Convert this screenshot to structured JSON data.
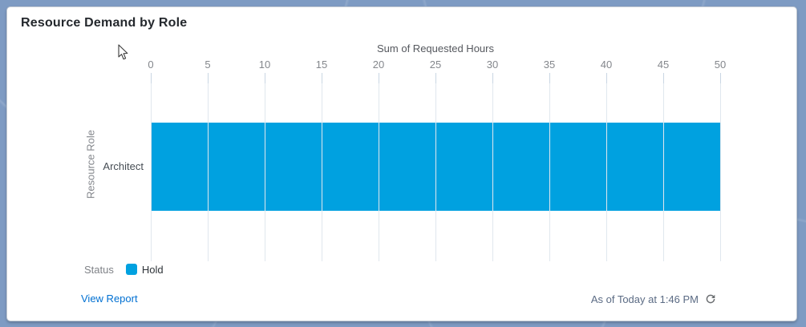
{
  "card": {
    "title": "Resource Demand by Role"
  },
  "chart_data": {
    "type": "bar",
    "orientation": "horizontal",
    "value_axis": {
      "label": "Sum of Requested Hours",
      "min": 0,
      "max": 50,
      "ticks": [
        0,
        5,
        10,
        15,
        20,
        25,
        30,
        35,
        40,
        45,
        50
      ],
      "position": "top"
    },
    "category_axis": {
      "label": "Resource Role",
      "categories": [
        "Architect"
      ]
    },
    "series": [
      {
        "name": "Hold",
        "values": [
          50
        ],
        "color": "#00A1E0"
      }
    ],
    "grid": true,
    "legend_position": "bottom-left"
  },
  "legend": {
    "title": "Status",
    "items": [
      {
        "label": "Hold",
        "color": "#00A1E0"
      }
    ]
  },
  "footer": {
    "view_report_label": "View Report",
    "as_of_text": "As of Today at 1:46 PM"
  },
  "icons": {
    "refresh": "refresh-icon",
    "cursor": "arrow-cursor-icon"
  },
  "colors": {
    "bar": "#00A1E0",
    "link": "#0070D2",
    "card_background": "#FFFFFF",
    "page_background": "#7E9BC3"
  }
}
